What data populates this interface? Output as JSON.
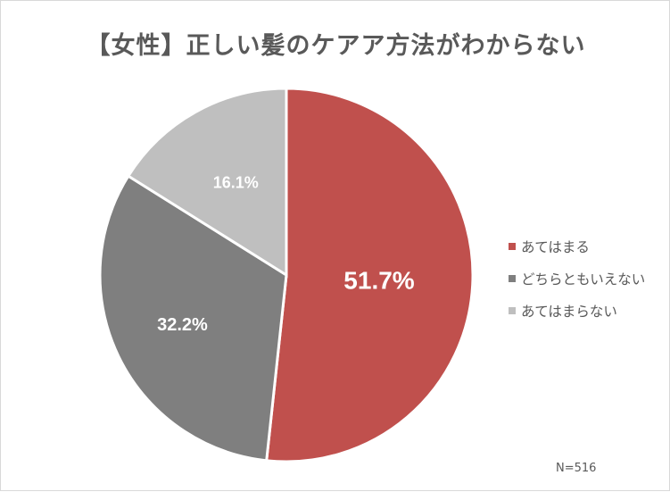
{
  "title": "【女性】正しい髪のケアア方法がわからない",
  "chart_data": {
    "type": "pie",
    "title": "【女性】正しい髪のケアア方法がわからない",
    "categories": [
      "あてはまる",
      "どちらともいえない",
      "あてはまらない"
    ],
    "values": [
      51.7,
      32.2,
      16.1
    ],
    "labels": [
      "51.7%",
      "32.2%",
      "16.1%"
    ],
    "colors": [
      "#c0504d",
      "#7f7f7f",
      "#bfbfbf"
    ],
    "legend_position": "right",
    "note": "N=516"
  },
  "legend": [
    {
      "label": "あてはまる",
      "color": "#c0504d"
    },
    {
      "label": "どちらともいえない",
      "color": "#7f7f7f"
    },
    {
      "label": "あてはまらない",
      "color": "#bfbfbf"
    }
  ],
  "note": "N=516"
}
